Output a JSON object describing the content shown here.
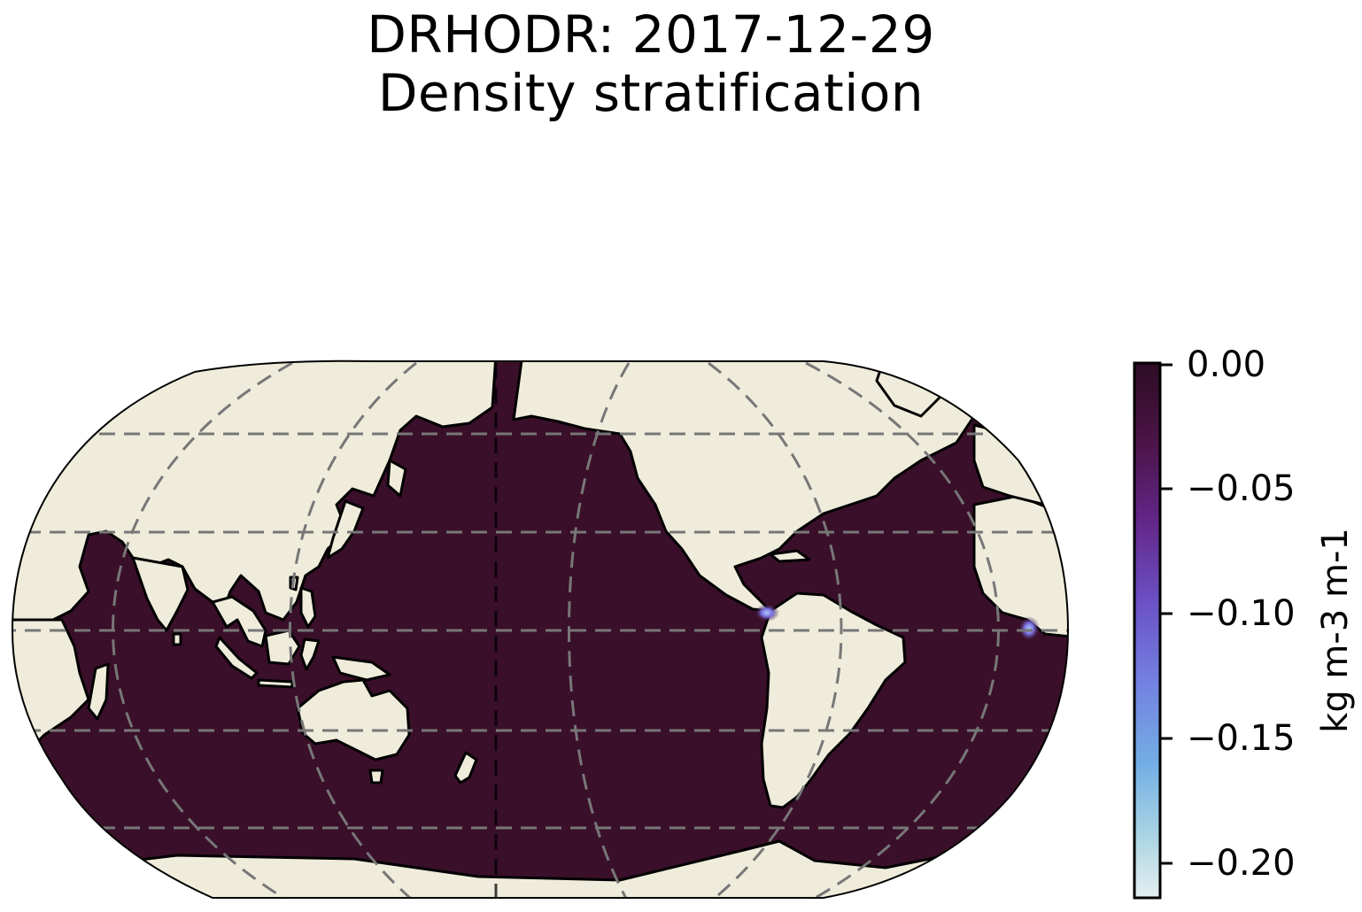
{
  "title": {
    "line1": "DRHODR: 2017-12-29",
    "line2": "Density stratification"
  },
  "map": {
    "projection": "Robinson (Pacific-centered)",
    "ocean_color": "#3a0f29",
    "land_color": "#efecdb",
    "coastline_color": "#000000",
    "gridline_color": "#777777",
    "gridlines": "dashed"
  },
  "colorbar": {
    "label": "kg m-3 m-1",
    "min": -0.21,
    "max": 0.0,
    "ticks": [
      "0.00",
      "−0.05",
      "−0.10",
      "−0.15",
      "−0.20"
    ],
    "tick_values": [
      0.0,
      -0.05,
      -0.1,
      -0.15,
      -0.2
    ],
    "colors": [
      "#3a0f29",
      "#5a1650",
      "#6f3aa0",
      "#7580e0",
      "#72a8e6",
      "#a6d0e4",
      "#e6f0f0"
    ]
  }
}
